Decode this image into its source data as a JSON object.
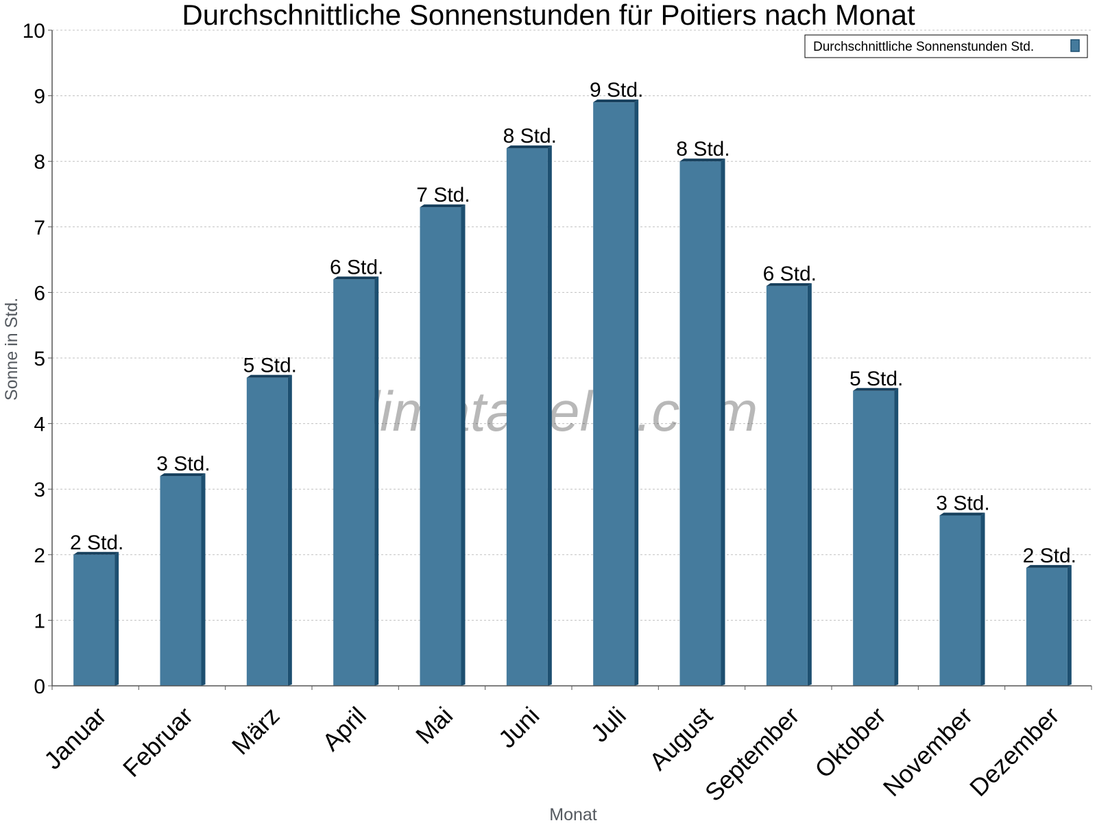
{
  "chart_data": {
    "type": "bar",
    "title": "Durchschnittliche Sonnenstunden für Poitiers nach Monat",
    "xlabel": "Monat",
    "ylabel": "Sonne in Std.",
    "ylim": [
      0,
      10
    ],
    "yticks": [
      "0",
      "1",
      "2",
      "3",
      "4",
      "5",
      "6",
      "7",
      "8",
      "9",
      "10"
    ],
    "grid": true,
    "legend_position": "top-right",
    "categories": [
      "Januar",
      "Februar",
      "März",
      "April",
      "Mai",
      "Juni",
      "Juli",
      "August",
      "September",
      "Oktober",
      "November",
      "Dezember"
    ],
    "series": [
      {
        "name": "Durchschnittliche Sonnenstunden Std.",
        "color": "#457b9d",
        "values": [
          2.0,
          3.2,
          4.7,
          6.2,
          7.3,
          8.2,
          8.9,
          8.0,
          6.1,
          4.5,
          2.6,
          1.8
        ],
        "data_labels": [
          "2 Std.",
          "3 Std.",
          "5 Std.",
          "6 Std.",
          "7 Std.",
          "8 Std.",
          "9 Std.",
          "8 Std.",
          "6 Std.",
          "5 Std.",
          "3 Std.",
          "2 Std."
        ]
      }
    ]
  },
  "watermark": "klimatabelle.com",
  "colors": {
    "bar_front": "#457b9d",
    "bar_side": "#1d4f70",
    "bar_top": "#163f5c",
    "grid": "#c0c0c0",
    "axis": "#555555"
  }
}
